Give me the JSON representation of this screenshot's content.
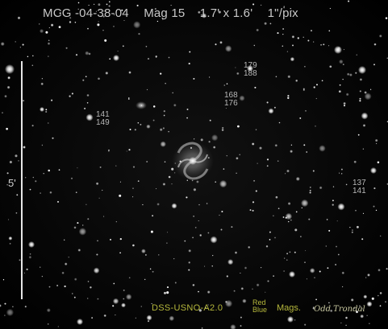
{
  "header": {
    "object": "MCG -04-38-04",
    "magnitude": "Mag 15",
    "size": "1.7' x 1.6'",
    "scale": "1\"/pix"
  },
  "scale_bar": {
    "label": "5'"
  },
  "star_mags": {
    "s1": {
      "red": "179",
      "blue": "188"
    },
    "s2": {
      "red": "168",
      "blue": "176"
    },
    "s3": {
      "red": "141",
      "blue": "149"
    },
    "s4": {
      "red": "137",
      "blue": "141"
    }
  },
  "footer": {
    "catalog": "DSS-USNO-A2.0",
    "red": "Red",
    "blue": "Blue",
    "mags": "Mags.",
    "author": "Odd Trondal"
  },
  "colors": {
    "background": "#000000",
    "text": "#b8b8b8",
    "credit": "#b6b83c"
  }
}
